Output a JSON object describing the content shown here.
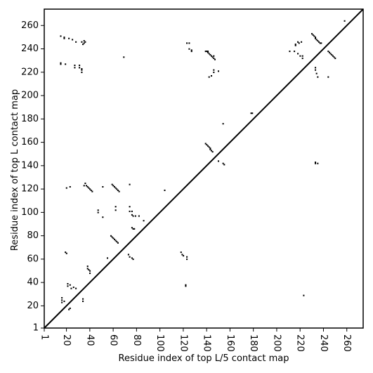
{
  "chart_data": {
    "type": "heatmap",
    "title": "",
    "xlabel": "Residue index of top L/5 contact map",
    "ylabel": "Residue index of top L contact map",
    "xlim": [
      1,
      274
    ],
    "ylim": [
      1,
      274
    ],
    "xticks": [
      1,
      20,
      40,
      60,
      80,
      100,
      120,
      140,
      160,
      180,
      200,
      220,
      240,
      260
    ],
    "yticks": [
      1,
      20,
      40,
      60,
      80,
      100,
      120,
      140,
      160,
      180,
      200,
      220,
      240,
      260
    ],
    "diagonal": true,
    "contact_color": "#000000",
    "contacts": [
      {
        "x": 15,
        "y": 228
      },
      {
        "x": 15,
        "y": 227
      },
      {
        "x": 18,
        "y": 250
      },
      {
        "x": 18,
        "y": 249
      },
      {
        "x": 15,
        "y": 251
      },
      {
        "x": 22,
        "y": 249
      },
      {
        "x": 25,
        "y": 248
      },
      {
        "x": 28,
        "y": 246
      },
      {
        "x": 19,
        "y": 227
      },
      {
        "x": 27,
        "y": 226
      },
      {
        "x": 27,
        "y": 224
      },
      {
        "x": 31,
        "y": 224
      },
      {
        "x": 31,
        "y": 226
      },
      {
        "x": 33,
        "y": 223
      },
      {
        "x": 33,
        "y": 222
      },
      {
        "x": 33,
        "y": 220
      },
      {
        "x": 33,
        "y": 246
      },
      {
        "x": 34,
        "y": 244
      },
      {
        "x": 35,
        "y": 247
      },
      {
        "x": 35,
        "y": 245
      },
      {
        "x": 36,
        "y": 246
      },
      {
        "x": 69,
        "y": 233
      },
      {
        "x": 123,
        "y": 245
      },
      {
        "x": 125,
        "y": 245
      },
      {
        "x": 125,
        "y": 240
      },
      {
        "x": 127,
        "y": 238
      },
      {
        "x": 127,
        "y": 239
      },
      {
        "x": 139,
        "y": 238
      },
      {
        "x": 140,
        "y": 238
      },
      {
        "x": 141,
        "y": 238
      },
      {
        "x": 141,
        "y": 237
      },
      {
        "x": 142,
        "y": 236
      },
      {
        "x": 143,
        "y": 235
      },
      {
        "x": 144,
        "y": 234
      },
      {
        "x": 145,
        "y": 233
      },
      {
        "x": 146,
        "y": 232
      },
      {
        "x": 146,
        "y": 234
      },
      {
        "x": 147,
        "y": 231
      },
      {
        "x": 142,
        "y": 216
      },
      {
        "x": 144,
        "y": 217
      },
      {
        "x": 146,
        "y": 220
      },
      {
        "x": 146,
        "y": 222
      },
      {
        "x": 150,
        "y": 221
      },
      {
        "x": 211,
        "y": 238
      },
      {
        "x": 215,
        "y": 238
      },
      {
        "x": 216,
        "y": 244
      },
      {
        "x": 216,
        "y": 243
      },
      {
        "x": 218,
        "y": 246
      },
      {
        "x": 219,
        "y": 245
      },
      {
        "x": 221,
        "y": 246
      },
      {
        "x": 218,
        "y": 236
      },
      {
        "x": 220,
        "y": 234
      },
      {
        "x": 222,
        "y": 234
      },
      {
        "x": 222,
        "y": 232
      },
      {
        "x": 230,
        "y": 253
      },
      {
        "x": 231,
        "y": 252
      },
      {
        "x": 232,
        "y": 251
      },
      {
        "x": 233,
        "y": 250
      },
      {
        "x": 233,
        "y": 249
      },
      {
        "x": 234,
        "y": 248
      },
      {
        "x": 235,
        "y": 247
      },
      {
        "x": 236,
        "y": 246
      },
      {
        "x": 237,
        "y": 245
      },
      {
        "x": 238,
        "y": 245
      },
      {
        "x": 233,
        "y": 224
      },
      {
        "x": 233,
        "y": 222
      },
      {
        "x": 234,
        "y": 219
      },
      {
        "x": 235,
        "y": 216
      },
      {
        "x": 244,
        "y": 238
      },
      {
        "x": 245,
        "y": 237
      },
      {
        "x": 246,
        "y": 236
      },
      {
        "x": 247,
        "y": 235
      },
      {
        "x": 248,
        "y": 234
      },
      {
        "x": 249,
        "y": 233
      },
      {
        "x": 250,
        "y": 232
      },
      {
        "x": 244,
        "y": 216
      },
      {
        "x": 258,
        "y": 264
      },
      {
        "x": 179,
        "y": 185
      },
      {
        "x": 178,
        "y": 185
      },
      {
        "x": 154,
        "y": 176
      },
      {
        "x": 139,
        "y": 159
      },
      {
        "x": 140,
        "y": 158
      },
      {
        "x": 141,
        "y": 157
      },
      {
        "x": 142,
        "y": 156
      },
      {
        "x": 143,
        "y": 155
      },
      {
        "x": 143,
        "y": 154
      },
      {
        "x": 144,
        "y": 153
      },
      {
        "x": 145,
        "y": 152
      },
      {
        "x": 150,
        "y": 144
      },
      {
        "x": 154,
        "y": 142
      },
      {
        "x": 155,
        "y": 141
      },
      {
        "x": 233,
        "y": 143
      },
      {
        "x": 233,
        "y": 142
      },
      {
        "x": 235,
        "y": 142
      },
      {
        "x": 36,
        "y": 125
      },
      {
        "x": 37,
        "y": 123
      },
      {
        "x": 38,
        "y": 122
      },
      {
        "x": 39,
        "y": 121
      },
      {
        "x": 40,
        "y": 120
      },
      {
        "x": 41,
        "y": 119
      },
      {
        "x": 42,
        "y": 118
      },
      {
        "x": 35,
        "y": 123
      },
      {
        "x": 23,
        "y": 122
      },
      {
        "x": 20,
        "y": 121
      },
      {
        "x": 51,
        "y": 122
      },
      {
        "x": 59,
        "y": 124
      },
      {
        "x": 60,
        "y": 123
      },
      {
        "x": 61,
        "y": 122
      },
      {
        "x": 62,
        "y": 121
      },
      {
        "x": 63,
        "y": 120
      },
      {
        "x": 64,
        "y": 119
      },
      {
        "x": 65,
        "y": 118
      },
      {
        "x": 74,
        "y": 124
      },
      {
        "x": 62,
        "y": 105
      },
      {
        "x": 62,
        "y": 102
      },
      {
        "x": 74,
        "y": 105
      },
      {
        "x": 74,
        "y": 101
      },
      {
        "x": 76,
        "y": 101
      },
      {
        "x": 104,
        "y": 119
      },
      {
        "x": 47,
        "y": 102
      },
      {
        "x": 47,
        "y": 100
      },
      {
        "x": 51,
        "y": 96
      },
      {
        "x": 76,
        "y": 98
      },
      {
        "x": 77,
        "y": 97
      },
      {
        "x": 79,
        "y": 97
      },
      {
        "x": 82,
        "y": 97
      },
      {
        "x": 86,
        "y": 93
      },
      {
        "x": 76,
        "y": 87
      },
      {
        "x": 77,
        "y": 86
      },
      {
        "x": 78,
        "y": 86
      },
      {
        "x": 58,
        "y": 80
      },
      {
        "x": 59,
        "y": 79
      },
      {
        "x": 60,
        "y": 78
      },
      {
        "x": 61,
        "y": 77
      },
      {
        "x": 62,
        "y": 76
      },
      {
        "x": 63,
        "y": 75
      },
      {
        "x": 64,
        "y": 74
      },
      {
        "x": 55,
        "y": 61
      },
      {
        "x": 73,
        "y": 64
      },
      {
        "x": 74,
        "y": 62
      },
      {
        "x": 76,
        "y": 61
      },
      {
        "x": 77,
        "y": 60
      },
      {
        "x": 19,
        "y": 66
      },
      {
        "x": 20,
        "y": 65
      },
      {
        "x": 38,
        "y": 54
      },
      {
        "x": 38,
        "y": 52
      },
      {
        "x": 39,
        "y": 51
      },
      {
        "x": 40,
        "y": 50
      },
      {
        "x": 40,
        "y": 48
      },
      {
        "x": 118,
        "y": 66
      },
      {
        "x": 119,
        "y": 64
      },
      {
        "x": 120,
        "y": 63
      },
      {
        "x": 123,
        "y": 62
      },
      {
        "x": 123,
        "y": 60
      },
      {
        "x": 122,
        "y": 38
      },
      {
        "x": 122,
        "y": 37
      },
      {
        "x": 21,
        "y": 39
      },
      {
        "x": 21,
        "y": 37
      },
      {
        "x": 23,
        "y": 38
      },
      {
        "x": 26,
        "y": 36
      },
      {
        "x": 28,
        "y": 35
      },
      {
        "x": 24,
        "y": 35
      },
      {
        "x": 16,
        "y": 27
      },
      {
        "x": 16,
        "y": 25
      },
      {
        "x": 16,
        "y": 23
      },
      {
        "x": 18,
        "y": 24
      },
      {
        "x": 23,
        "y": 18
      },
      {
        "x": 22,
        "y": 17
      },
      {
        "x": 34,
        "y": 26
      },
      {
        "x": 34,
        "y": 24
      },
      {
        "x": 223,
        "y": 29
      }
    ]
  }
}
